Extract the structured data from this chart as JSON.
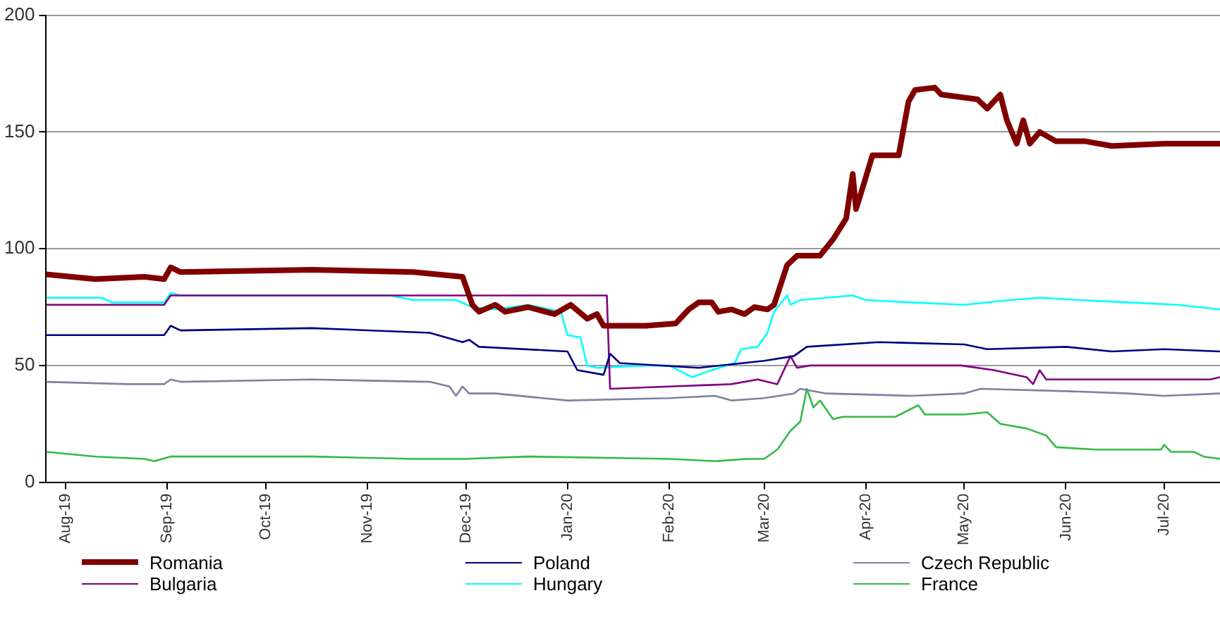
{
  "chart_data": {
    "type": "line",
    "xlim": [
      "2019-07-26",
      "2020-07-18"
    ],
    "ylim": [
      0,
      200
    ],
    "yticks": [
      0,
      50,
      100,
      150,
      200
    ],
    "xticks": [
      {
        "value": "2019-08-01",
        "label": "Aug-19"
      },
      {
        "value": "2019-09-01",
        "label": "Sep-19"
      },
      {
        "value": "2019-10-01",
        "label": "Oct-19"
      },
      {
        "value": "2019-11-01",
        "label": "Nov-19"
      },
      {
        "value": "2019-12-01",
        "label": "Dec-19"
      },
      {
        "value": "2020-01-01",
        "label": "Jan-20"
      },
      {
        "value": "2020-02-01",
        "label": "Feb-20"
      },
      {
        "value": "2020-03-01",
        "label": "Mar-20"
      },
      {
        "value": "2020-04-01",
        "label": "Apr-20"
      },
      {
        "value": "2020-05-01",
        "label": "May-20"
      },
      {
        "value": "2020-06-01",
        "label": "Jun-20"
      },
      {
        "value": "2020-07-01",
        "label": "Jul-20"
      }
    ],
    "grid": "y",
    "legend": "bottom",
    "marker": "none",
    "line_style": "solid",
    "series": [
      {
        "name": "Romania",
        "color": "#800000",
        "x": [
          "2019-07-26",
          "2019-08-10",
          "2019-08-25",
          "2019-08-31",
          "2019-09-02",
          "2019-09-05",
          "2019-10-15",
          "2019-11-15",
          "2019-11-30",
          "2019-12-03",
          "2019-12-05",
          "2019-12-10",
          "2019-12-13",
          "2019-12-20",
          "2019-12-28",
          "2020-01-02",
          "2020-01-07",
          "2020-01-10",
          "2020-01-12",
          "2020-01-25",
          "2020-02-03",
          "2020-02-07",
          "2020-02-10",
          "2020-02-14",
          "2020-02-16",
          "2020-02-20",
          "2020-02-24",
          "2020-02-27",
          "2020-03-02",
          "2020-03-04",
          "2020-03-08",
          "2020-03-11",
          "2020-03-18",
          "2020-03-22",
          "2020-03-26",
          "2020-03-28",
          "2020-03-29",
          "2020-03-31",
          "2020-04-03",
          "2020-04-11",
          "2020-04-14",
          "2020-04-16",
          "2020-04-22",
          "2020-04-24",
          "2020-05-05",
          "2020-05-08",
          "2020-05-12",
          "2020-05-14",
          "2020-05-17",
          "2020-05-19",
          "2020-05-21",
          "2020-05-24",
          "2020-05-29",
          "2020-06-07",
          "2020-06-15",
          "2020-07-01",
          "2020-07-18"
        ],
        "values": [
          89,
          87,
          88,
          87,
          92,
          90,
          91,
          90,
          88,
          76,
          73,
          76,
          73,
          75,
          72,
          76,
          70,
          72,
          67,
          67,
          68,
          74,
          77,
          77,
          73,
          74,
          72,
          75,
          74,
          76,
          93,
          97,
          97,
          104,
          113,
          132,
          117,
          126,
          140,
          140,
          163,
          168,
          169,
          166,
          164,
          160,
          166,
          155,
          145,
          155,
          145,
          150,
          146,
          146,
          144,
          145,
          145
        ]
      },
      {
        "name": "Poland",
        "color": "#000080",
        "x": [
          "2019-07-26",
          "2019-08-31",
          "2019-09-02",
          "2019-09-05",
          "2019-10-15",
          "2019-11-20",
          "2019-11-30",
          "2019-12-02",
          "2019-12-05",
          "2020-01-01",
          "2020-01-04",
          "2020-01-12",
          "2020-01-14",
          "2020-01-17",
          "2020-02-10",
          "2020-03-01",
          "2020-03-10",
          "2020-03-14",
          "2020-04-05",
          "2020-05-01",
          "2020-05-08",
          "2020-06-01",
          "2020-06-15",
          "2020-07-01",
          "2020-07-18"
        ],
        "values": [
          63,
          63,
          67,
          65,
          66,
          64,
          60,
          61,
          58,
          56,
          48,
          46,
          55,
          51,
          49,
          52,
          54,
          58,
          60,
          59,
          57,
          58,
          56,
          57,
          56
        ]
      },
      {
        "name": "Czech Republic",
        "color": "#8080a0",
        "x": [
          "2019-07-26",
          "2019-08-20",
          "2019-08-31",
          "2019-09-02",
          "2019-09-05",
          "2019-10-15",
          "2019-11-20",
          "2019-11-26",
          "2019-11-28",
          "2019-11-30",
          "2019-12-02",
          "2019-12-10",
          "2020-01-01",
          "2020-02-01",
          "2020-02-15",
          "2020-02-20",
          "2020-03-01",
          "2020-03-10",
          "2020-03-12",
          "2020-03-20",
          "2020-04-15",
          "2020-05-01",
          "2020-05-06",
          "2020-06-01",
          "2020-06-20",
          "2020-07-01",
          "2020-07-18"
        ],
        "values": [
          43,
          42,
          42,
          44,
          43,
          44,
          43,
          41,
          37,
          41,
          38,
          38,
          35,
          36,
          37,
          35,
          36,
          38,
          40,
          38,
          37,
          38,
          40,
          39,
          38,
          37,
          38
        ]
      },
      {
        "name": "Bulgaria",
        "color": "#800080",
        "x": [
          "2019-07-26",
          "2019-08-31",
          "2019-09-02",
          "2020-01-13",
          "2020-01-14",
          "2020-02-01",
          "2020-02-20",
          "2020-02-28",
          "2020-03-05",
          "2020-03-09",
          "2020-03-11",
          "2020-03-15",
          "2020-04-30",
          "2020-05-10",
          "2020-05-20",
          "2020-05-22",
          "2020-05-24",
          "2020-05-26",
          "2020-07-15",
          "2020-07-18"
        ],
        "values": [
          76,
          76,
          80,
          80,
          40,
          41,
          42,
          44,
          42,
          54,
          49,
          50,
          50,
          48,
          45,
          42,
          48,
          44,
          44,
          45
        ]
      },
      {
        "name": "Hungary",
        "color": "#00ffff",
        "x": [
          "2019-07-26",
          "2019-08-12",
          "2019-08-15",
          "2019-08-31",
          "2019-09-02",
          "2019-09-05",
          "2019-11-08",
          "2019-11-15",
          "2019-11-28",
          "2019-12-03",
          "2019-12-10",
          "2019-12-20",
          "2019-12-30",
          "2020-01-01",
          "2020-01-05",
          "2020-01-07",
          "2020-01-10",
          "2020-01-25",
          "2020-02-01",
          "2020-02-08",
          "2020-02-14",
          "2020-02-21",
          "2020-02-23",
          "2020-02-28",
          "2020-03-02",
          "2020-03-04",
          "2020-03-08",
          "2020-03-09",
          "2020-03-12",
          "2020-03-28",
          "2020-04-01",
          "2020-04-15",
          "2020-05-01",
          "2020-05-15",
          "2020-05-24",
          "2020-06-05",
          "2020-06-20",
          "2020-07-05",
          "2020-07-18"
        ],
        "values": [
          79,
          79,
          77,
          77,
          81,
          80,
          80,
          78,
          78,
          75,
          74,
          76,
          73,
          63,
          62,
          50,
          49,
          50,
          50,
          45,
          48,
          51,
          57,
          58,
          64,
          73,
          80,
          76,
          78,
          80,
          78,
          77,
          76,
          78,
          79,
          78,
          77,
          76,
          74
        ]
      },
      {
        "name": "France",
        "color": "#33bb44",
        "x": [
          "2019-07-26",
          "2019-08-10",
          "2019-08-25",
          "2019-08-28",
          "2019-09-02",
          "2019-10-15",
          "2019-11-15",
          "2019-12-01",
          "2019-12-20",
          "2020-02-01",
          "2020-02-15",
          "2020-02-25",
          "2020-03-01",
          "2020-03-05",
          "2020-03-09",
          "2020-03-12",
          "2020-03-14",
          "2020-03-16",
          "2020-03-18",
          "2020-03-22",
          "2020-03-25",
          "2020-04-10",
          "2020-04-17",
          "2020-04-19",
          "2020-05-01",
          "2020-05-08",
          "2020-05-12",
          "2020-05-20",
          "2020-05-26",
          "2020-05-29",
          "2020-06-10",
          "2020-06-30",
          "2020-07-01",
          "2020-07-03",
          "2020-07-10",
          "2020-07-13",
          "2020-07-18"
        ],
        "values": [
          13,
          11,
          10,
          9,
          11,
          11,
          10,
          10,
          11,
          10,
          9,
          10,
          10,
          14,
          22,
          26,
          40,
          32,
          35,
          27,
          28,
          28,
          33,
          29,
          29,
          30,
          25,
          23,
          20,
          15,
          14,
          14,
          16,
          13,
          13,
          11,
          10
        ]
      }
    ]
  }
}
